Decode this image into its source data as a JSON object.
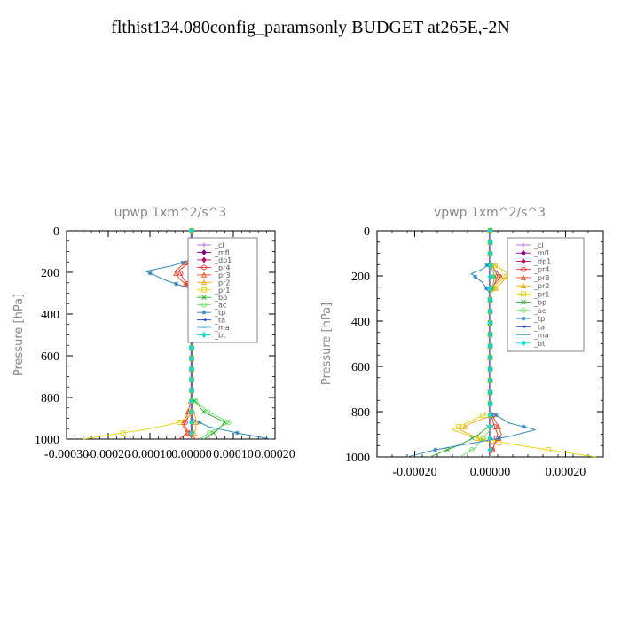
{
  "page": {
    "title": "flthist134.080config_paramsonly  BUDGET at265E,-2N"
  },
  "legend_items": [
    {
      "label": "_cl",
      "color": "#b060e0",
      "marker": "plus"
    },
    {
      "label": "_mfl",
      "color": "#800080",
      "marker": "diamond"
    },
    {
      "label": "_dp1",
      "color": "#c01060",
      "marker": "diamond"
    },
    {
      "label": "_pr4",
      "color": "#ff2020",
      "marker": "circle"
    },
    {
      "label": "_pr3",
      "color": "#ff4010",
      "marker": "tri"
    },
    {
      "label": "_pr2",
      "color": "#ffa000",
      "marker": "tri"
    },
    {
      "label": "_pr1",
      "color": "#e8d000",
      "marker": "square"
    },
    {
      "label": "_bp",
      "color": "#20b020",
      "marker": "x"
    },
    {
      "label": "_ac",
      "color": "#60e060",
      "marker": "circle"
    },
    {
      "label": "_tp",
      "color": "#2080c0",
      "marker": "star"
    },
    {
      "label": "_ta",
      "color": "#2040d0",
      "marker": "arrow"
    },
    {
      "label": "_ma",
      "color": "#50b0e0",
      "marker": "dash"
    },
    {
      "label": "_bt",
      "color": "#00e0e0",
      "marker": "diamond"
    }
  ],
  "chart_data": [
    {
      "type": "line",
      "title": "upwp   1xm^2/s^3",
      "ylabel": "Pressure [hPa]",
      "xlim": [
        -0.0003,
        0.0002
      ],
      "ylim": [
        1000,
        0
      ],
      "y_inverted": true,
      "xticks": [
        -0.0003,
        -0.0002,
        -0.0001,
        0.0,
        0.0001,
        0.0002
      ],
      "xtick_labels": [
        "-0.00030",
        "-0.00020",
        "-0.00010",
        "0.00000",
        "0.00010",
        "0.00020"
      ],
      "yticks": [
        0,
        200,
        400,
        600,
        800,
        1000
      ],
      "ytick_labels": [
        "0",
        "200",
        "400",
        "600",
        "800",
        "1000"
      ],
      "series": [
        {
          "name": "_cl",
          "x": [
            0,
            0,
            0,
            0,
            0,
            0,
            0,
            0,
            0,
            0,
            0,
            0
          ],
          "y": [
            0,
            100,
            200,
            300,
            400,
            500,
            600,
            700,
            800,
            900,
            950,
            1000
          ]
        },
        {
          "name": "_mfl",
          "x": [
            0,
            0,
            0,
            0,
            0,
            0,
            0,
            0,
            0,
            0,
            0,
            0
          ],
          "y": [
            0,
            100,
            200,
            300,
            400,
            500,
            600,
            700,
            800,
            900,
            950,
            1000
          ]
        },
        {
          "name": "_dp1",
          "x": [
            0,
            0,
            0,
            0,
            0,
            0,
            0,
            0,
            0,
            0,
            0,
            0
          ],
          "y": [
            0,
            100,
            200,
            300,
            400,
            500,
            600,
            700,
            800,
            900,
            950,
            1000
          ]
        },
        {
          "name": "_pr4",
          "x": [
            0,
            0,
            -1e-05,
            -3e-05,
            -2e-05,
            0,
            0,
            0,
            0,
            -1e-05,
            -2e-05,
            -1e-05,
            -3e-05
          ],
          "y": [
            0,
            130,
            160,
            190,
            230,
            280,
            400,
            800,
            870,
            900,
            940,
            970,
            1000
          ]
        },
        {
          "name": "_pr3",
          "x": [
            0,
            0,
            -2e-05,
            -4e-05,
            -3e-05,
            0,
            0,
            0,
            -1e-05,
            -2e-05,
            -1e-05,
            1e-05
          ],
          "y": [
            0,
            130,
            160,
            195,
            230,
            280,
            400,
            800,
            880,
            920,
            960,
            1000
          ]
        },
        {
          "name": "_pr2",
          "x": [
            0,
            0,
            1e-05,
            2e-05,
            1e-05,
            0,
            0,
            0,
            1e-05,
            1e-05,
            0
          ],
          "y": [
            0,
            140,
            170,
            200,
            240,
            280,
            400,
            850,
            900,
            950,
            1000
          ]
        },
        {
          "name": "_pr1",
          "x": [
            0,
            0,
            1e-05,
            2e-05,
            2e-05,
            1e-05,
            0,
            0,
            -3e-05,
            -0.0001,
            -0.00018,
            -0.00026
          ],
          "y": [
            0,
            140,
            170,
            200,
            250,
            300,
            400,
            880,
            920,
            950,
            975,
            1000
          ]
        },
        {
          "name": "_bp",
          "x": [
            0,
            0,
            2e-05,
            5e-05,
            3e-05,
            0,
            0,
            3e-05,
            8e-05,
            6e-05,
            3e-05
          ],
          "y": [
            0,
            140,
            170,
            200,
            240,
            280,
            800,
            870,
            920,
            960,
            1000
          ]
        },
        {
          "name": "_ac",
          "x": [
            0,
            0,
            3e-05,
            6e-05,
            4e-05,
            0,
            0,
            4e-05,
            9e-05,
            5e-05,
            2e-05
          ],
          "y": [
            0,
            140,
            170,
            200,
            240,
            280,
            800,
            870,
            920,
            960,
            1000
          ]
        },
        {
          "name": "_tp",
          "x": [
            0,
            0,
            -5e-05,
            -0.00011,
            -6e-05,
            0,
            0,
            0,
            4e-05,
            0.00012,
            0.00019
          ],
          "y": [
            0,
            140,
            170,
            195,
            240,
            280,
            800,
            900,
            940,
            975,
            1000
          ]
        },
        {
          "name": "_ta",
          "x": [
            0,
            0,
            0,
            0,
            0,
            0,
            0,
            0,
            0,
            0
          ],
          "y": [
            0,
            100,
            200,
            300,
            400,
            500,
            600,
            800,
            900,
            1000
          ]
        },
        {
          "name": "_ma",
          "x": [
            0,
            0,
            0,
            0,
            0,
            0,
            0,
            0,
            0,
            0
          ],
          "y": [
            0,
            100,
            200,
            300,
            400,
            500,
            600,
            800,
            900,
            1000
          ]
        },
        {
          "name": "_bt",
          "x": [
            0,
            0,
            0,
            0,
            0,
            0,
            0,
            0,
            0,
            0
          ],
          "y": [
            0,
            100,
            200,
            300,
            400,
            500,
            600,
            800,
            900,
            1000
          ]
        }
      ]
    },
    {
      "type": "line",
      "title": "vpwp   1xm^2/s^3",
      "ylabel": "Pressure [hPa]",
      "xlim": [
        -0.0003,
        0.0003
      ],
      "ylim": [
        1000,
        0
      ],
      "y_inverted": true,
      "xticks": [
        -0.0002,
        0.0,
        0.0002
      ],
      "xtick_labels": [
        "-0.00020",
        "0.00000",
        "0.00020"
      ],
      "yticks": [
        0,
        200,
        400,
        600,
        800,
        1000
      ],
      "ytick_labels": [
        "0",
        "200",
        "400",
        "600",
        "800",
        "1000"
      ],
      "series": [
        {
          "name": "_cl",
          "x": [
            0,
            0,
            0,
            0,
            0,
            0,
            0,
            0,
            0,
            0,
            0,
            0
          ],
          "y": [
            0,
            100,
            200,
            300,
            400,
            500,
            600,
            700,
            800,
            900,
            950,
            1000
          ]
        },
        {
          "name": "_mfl",
          "x": [
            0,
            0,
            0,
            0,
            0,
            0,
            0,
            0,
            0,
            0,
            0,
            0
          ],
          "y": [
            0,
            100,
            200,
            300,
            400,
            500,
            600,
            700,
            800,
            900,
            950,
            1000
          ]
        },
        {
          "name": "_dp1",
          "x": [
            0,
            0,
            0,
            0,
            0,
            0,
            0,
            0,
            0,
            0,
            0,
            0
          ],
          "y": [
            0,
            100,
            200,
            300,
            400,
            500,
            600,
            700,
            800,
            900,
            950,
            1000
          ]
        },
        {
          "name": "_pr4",
          "x": [
            0,
            0,
            1e-05,
            2e-05,
            1e-05,
            0,
            0,
            1e-05,
            2e-05,
            1e-05,
            0
          ],
          "y": [
            0,
            140,
            170,
            200,
            240,
            280,
            800,
            860,
            900,
            950,
            1000
          ]
        },
        {
          "name": "_pr3",
          "x": [
            0,
            0,
            1e-05,
            3e-05,
            1e-05,
            0,
            0,
            2e-05,
            3e-05,
            1e-05,
            0
          ],
          "y": [
            0,
            140,
            170,
            200,
            240,
            280,
            800,
            860,
            900,
            950,
            1000
          ]
        },
        {
          "name": "_pr2",
          "x": [
            0,
            0,
            3e-05,
            5e-05,
            3e-05,
            0,
            0,
            -5e-05,
            -8e-05,
            -3e-05,
            3e-05
          ],
          "y": [
            0,
            140,
            170,
            195,
            230,
            280,
            820,
            850,
            880,
            920,
            950
          ]
        },
        {
          "name": "_pr1",
          "x": [
            0,
            0,
            3e-05,
            5e-05,
            2e-05,
            0,
            0,
            -5e-05,
            -0.0001,
            -5e-05,
            8e-05,
            0.0002,
            0.00028
          ],
          "y": [
            0,
            140,
            170,
            195,
            230,
            280,
            800,
            840,
            880,
            910,
            950,
            980,
            1000
          ]
        },
        {
          "name": "_bp",
          "x": [
            0,
            0,
            1e-05,
            1e-05,
            0,
            0,
            -3e-05,
            -6e-05,
            -0.0001,
            -0.00016
          ],
          "y": [
            0,
            150,
            190,
            220,
            280,
            860,
            900,
            930,
            960,
            1000
          ]
        },
        {
          "name": "_ac",
          "x": [
            0,
            0,
            1e-05,
            1e-05,
            0,
            0,
            -2e-05,
            -4e-05,
            -8e-05
          ],
          "y": [
            0,
            150,
            190,
            220,
            280,
            880,
            920,
            960,
            1000
          ]
        },
        {
          "name": "_tp",
          "x": [
            0,
            0,
            -2e-05,
            -5e-05,
            -2e-05,
            0,
            0,
            5e-05,
            0.00012,
            5e-05,
            -5e-05,
            -0.00015,
            -0.00022
          ],
          "y": [
            0,
            140,
            170,
            190,
            230,
            280,
            800,
            850,
            880,
            910,
            940,
            970,
            1000
          ]
        },
        {
          "name": "_ta",
          "x": [
            0,
            0,
            0,
            0,
            0,
            0,
            0,
            0,
            0,
            0
          ],
          "y": [
            0,
            100,
            200,
            300,
            400,
            500,
            600,
            800,
            900,
            1000
          ]
        },
        {
          "name": "_ma",
          "x": [
            0,
            0,
            0,
            0,
            0,
            0,
            0,
            0,
            0,
            0
          ],
          "y": [
            0,
            100,
            200,
            300,
            400,
            500,
            600,
            800,
            900,
            1000
          ]
        },
        {
          "name": "_bt",
          "x": [
            0,
            0,
            0,
            0,
            0,
            0,
            0,
            0,
            0,
            0
          ],
          "y": [
            0,
            100,
            200,
            300,
            400,
            500,
            600,
            800,
            900,
            1000
          ]
        }
      ]
    }
  ]
}
